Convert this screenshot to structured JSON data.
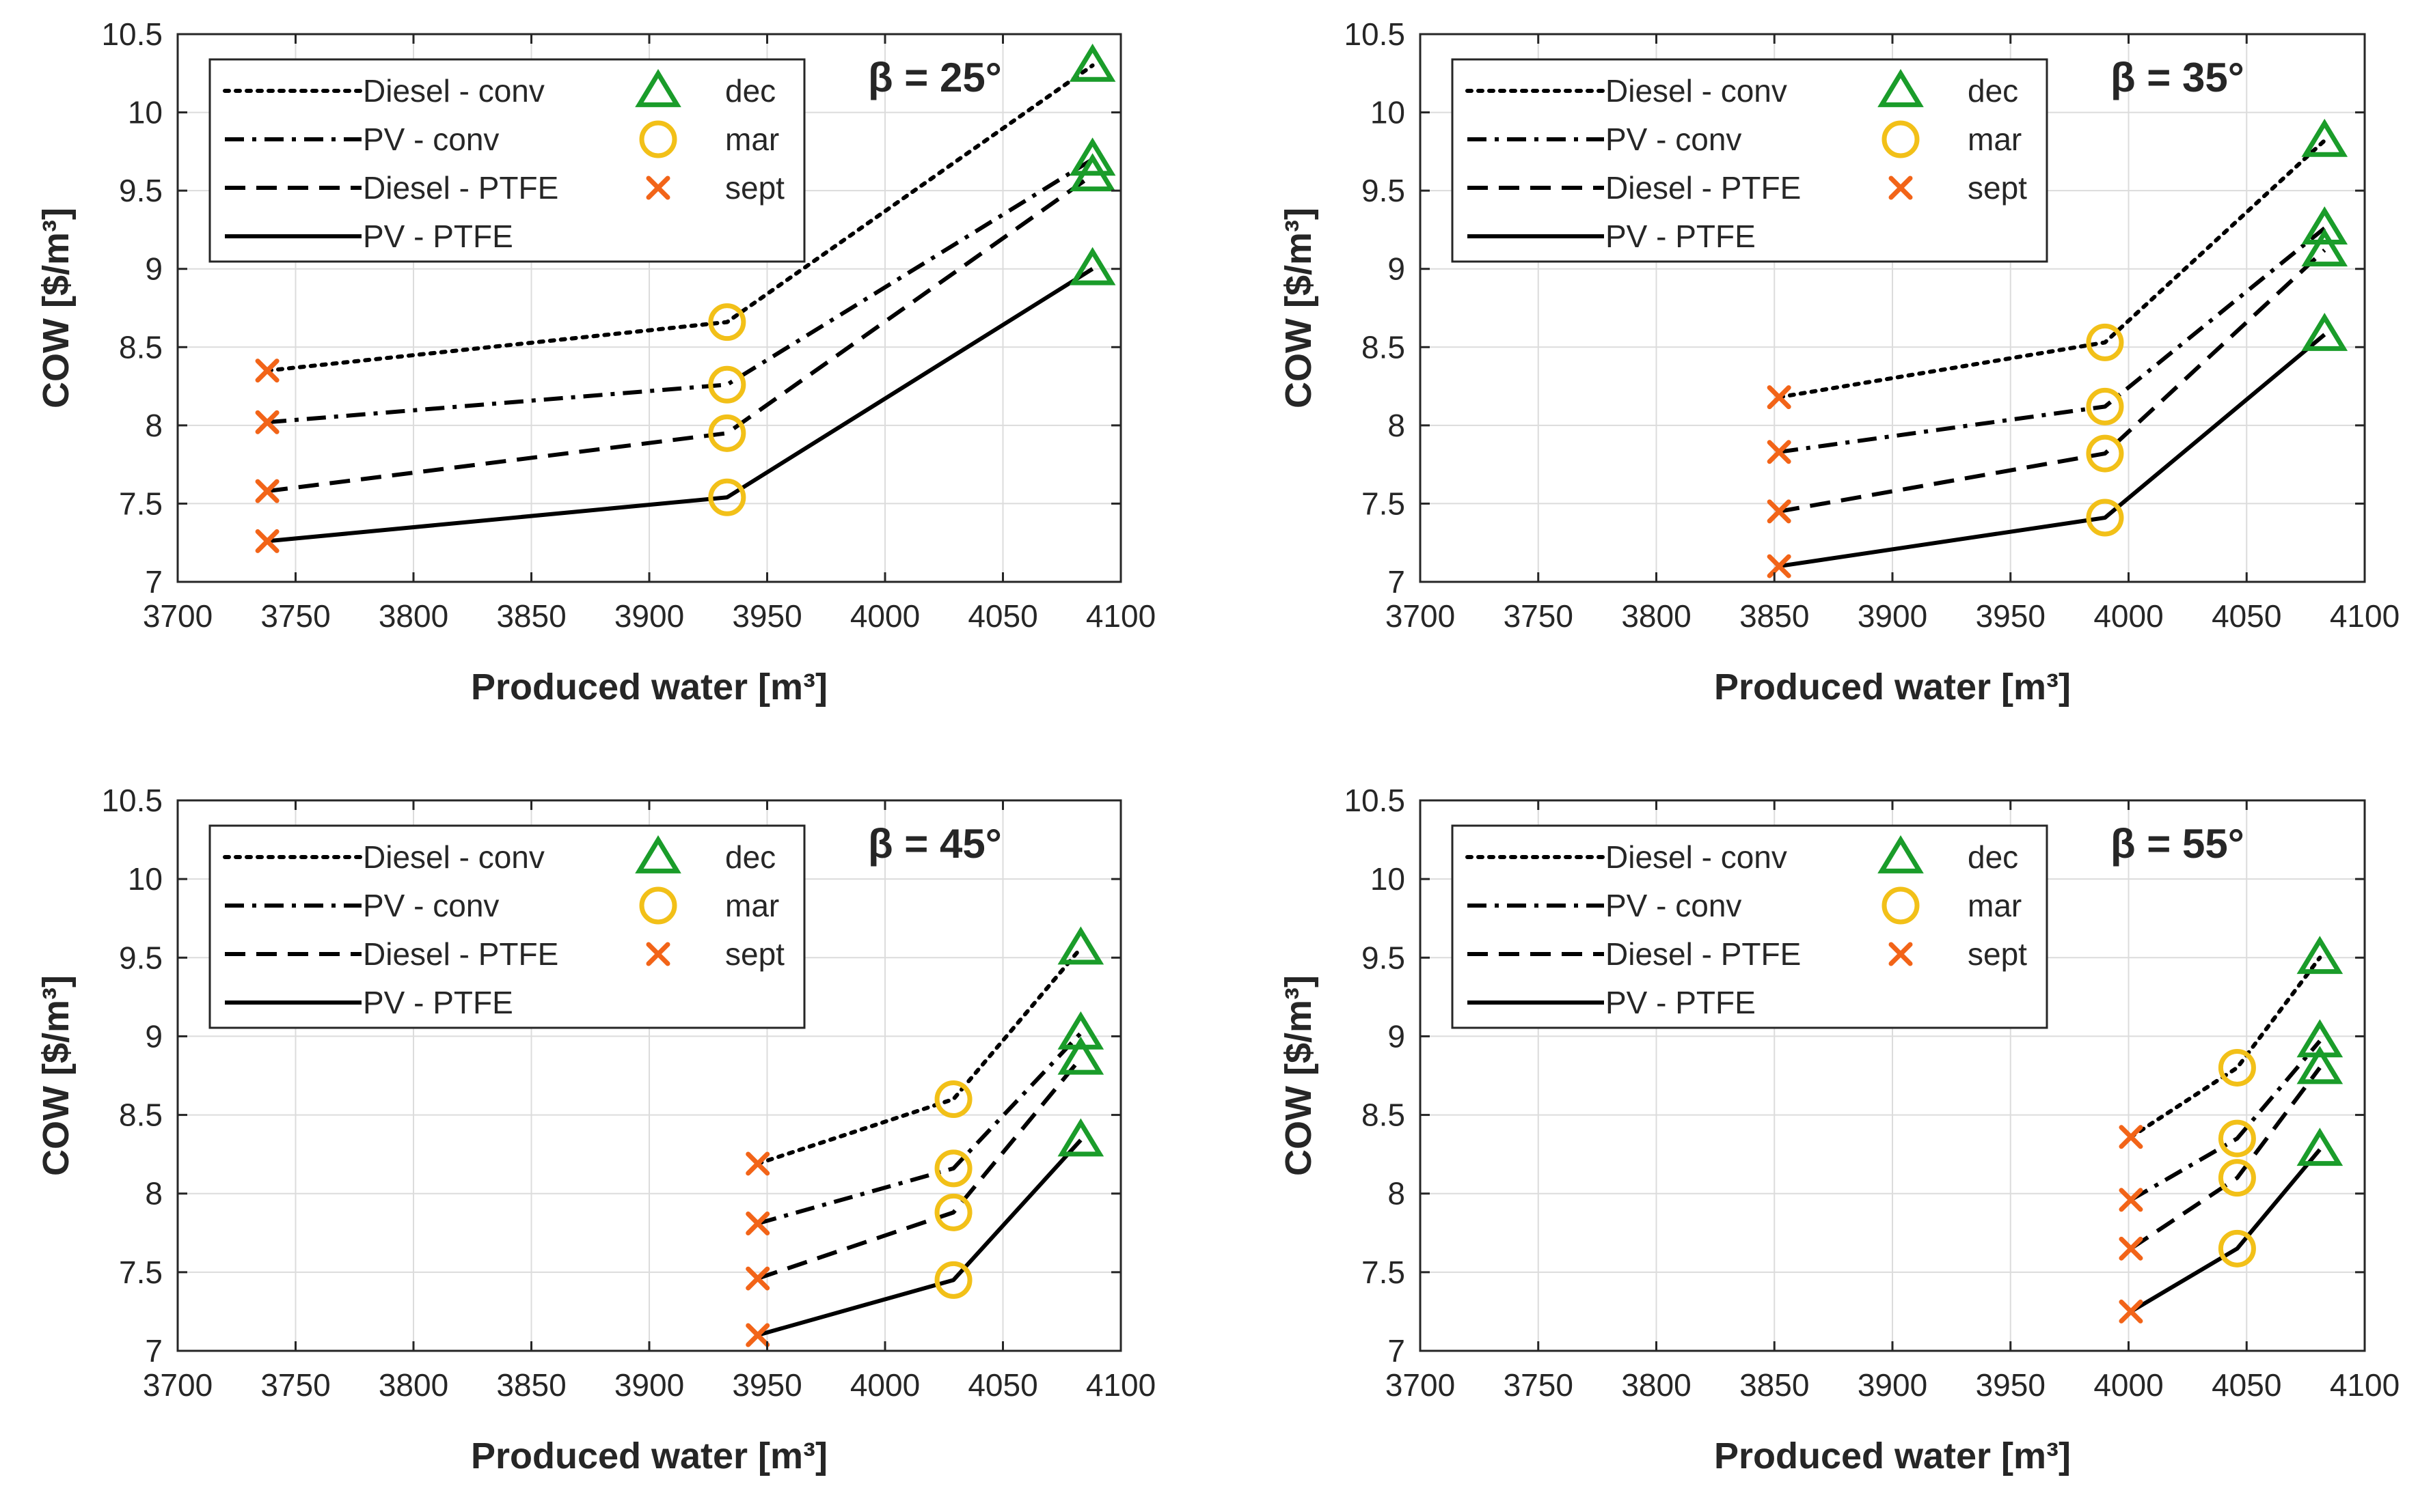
{
  "chart_data": [
    {
      "type": "line",
      "annotation": "β = 25°",
      "xlabel": "Produced water [m³]",
      "ylabel": "COW [$/m³]",
      "xlim": [
        3700,
        4100
      ],
      "ylim": [
        7,
        10.5
      ],
      "xticks": [
        3700,
        3750,
        3800,
        3850,
        3900,
        3950,
        4000,
        4050,
        4100
      ],
      "yticks": [
        7,
        7.5,
        8,
        8.5,
        9,
        9.5,
        10,
        10.5
      ],
      "x": [
        3738,
        3933,
        4088
      ],
      "series": [
        {
          "name": "Diesel - conv",
          "style": "dotted",
          "values": [
            8.35,
            8.66,
            10.3
          ]
        },
        {
          "name": "PV - conv",
          "style": "dashdot",
          "values": [
            8.02,
            8.26,
            9.7
          ]
        },
        {
          "name": "Diesel - PTFE",
          "style": "dashed",
          "values": [
            7.58,
            7.95,
            9.6
          ]
        },
        {
          "name": "PV - PTFE",
          "style": "solid",
          "values": [
            7.26,
            7.54,
            9.0
          ]
        }
      ],
      "markers": [
        {
          "name": "dec",
          "symbol": "triangle",
          "color": "#1a9c2a",
          "point_index": 2
        },
        {
          "name": "mar",
          "symbol": "circle",
          "color": "#f2c018",
          "point_index": 1
        },
        {
          "name": "sept",
          "symbol": "cross",
          "color": "#f26418",
          "point_index": 0
        }
      ]
    },
    {
      "type": "line",
      "annotation": "β = 35°",
      "xlabel": "Produced water [m³]",
      "ylabel": "COW [$/m³]",
      "xlim": [
        3700,
        4100
      ],
      "ylim": [
        7,
        10.5
      ],
      "xticks": [
        3700,
        3750,
        3800,
        3850,
        3900,
        3950,
        4000,
        4050,
        4100
      ],
      "yticks": [
        7,
        7.5,
        8,
        8.5,
        9,
        9.5,
        10,
        10.5
      ],
      "x": [
        3852,
        3990,
        4083
      ],
      "series": [
        {
          "name": "Diesel - conv",
          "style": "dotted",
          "values": [
            8.18,
            8.53,
            9.82
          ]
        },
        {
          "name": "PV - conv",
          "style": "dashdot",
          "values": [
            7.83,
            8.12,
            9.26
          ]
        },
        {
          "name": "Diesel - PTFE",
          "style": "dashed",
          "values": [
            7.45,
            7.82,
            9.12
          ]
        },
        {
          "name": "PV - PTFE",
          "style": "solid",
          "values": [
            7.1,
            7.41,
            8.58
          ]
        }
      ],
      "markers": [
        {
          "name": "dec",
          "symbol": "triangle",
          "color": "#1a9c2a",
          "point_index": 2
        },
        {
          "name": "mar",
          "symbol": "circle",
          "color": "#f2c018",
          "point_index": 1
        },
        {
          "name": "sept",
          "symbol": "cross",
          "color": "#f26418",
          "point_index": 0
        }
      ]
    },
    {
      "type": "line",
      "annotation": "β = 45°",
      "xlabel": "Produced water [m³]",
      "ylabel": "COW [$/m³]",
      "xlim": [
        3700,
        4100
      ],
      "ylim": [
        7,
        10.5
      ],
      "xticks": [
        3700,
        3750,
        3800,
        3850,
        3900,
        3950,
        4000,
        4050,
        4100
      ],
      "yticks": [
        7,
        7.5,
        8,
        8.5,
        9,
        9.5,
        10,
        10.5
      ],
      "x": [
        3946,
        4029,
        4083
      ],
      "series": [
        {
          "name": "Diesel - conv",
          "style": "dotted",
          "values": [
            8.19,
            8.6,
            9.56
          ]
        },
        {
          "name": "PV - conv",
          "style": "dashdot",
          "values": [
            7.81,
            8.16,
            9.02
          ]
        },
        {
          "name": "Diesel - PTFE",
          "style": "dashed",
          "values": [
            7.46,
            7.88,
            8.86
          ]
        },
        {
          "name": "PV - PTFE",
          "style": "solid",
          "values": [
            7.1,
            7.45,
            8.34
          ]
        }
      ],
      "markers": [
        {
          "name": "dec",
          "symbol": "triangle",
          "color": "#1a9c2a",
          "point_index": 2
        },
        {
          "name": "mar",
          "symbol": "circle",
          "color": "#f2c018",
          "point_index": 1
        },
        {
          "name": "sept",
          "symbol": "cross",
          "color": "#f26418",
          "point_index": 0
        }
      ]
    },
    {
      "type": "line",
      "annotation": "β = 55°",
      "xlabel": "Produced water [m³]",
      "ylabel": "COW [$/m³]",
      "xlim": [
        3700,
        4100
      ],
      "ylim": [
        7,
        10.5
      ],
      "xticks": [
        3700,
        3750,
        3800,
        3850,
        3900,
        3950,
        4000,
        4050,
        4100
      ],
      "yticks": [
        7,
        7.5,
        8,
        8.5,
        9,
        9.5,
        10,
        10.5
      ],
      "x": [
        4001,
        4046,
        4081
      ],
      "series": [
        {
          "name": "Diesel - conv",
          "style": "dotted",
          "values": [
            8.36,
            8.8,
            9.5
          ]
        },
        {
          "name": "PV - conv",
          "style": "dashdot",
          "values": [
            7.96,
            8.35,
            8.97
          ]
        },
        {
          "name": "Diesel - PTFE",
          "style": "dashed",
          "values": [
            7.65,
            8.1,
            8.8
          ]
        },
        {
          "name": "PV - PTFE",
          "style": "solid",
          "values": [
            7.25,
            7.65,
            8.28
          ]
        }
      ],
      "markers": [
        {
          "name": "dec",
          "symbol": "triangle",
          "color": "#1a9c2a",
          "point_index": 2
        },
        {
          "name": "mar",
          "symbol": "circle",
          "color": "#f2c018",
          "point_index": 1
        },
        {
          "name": "sept",
          "symbol": "cross",
          "color": "#f26418",
          "point_index": 0
        }
      ]
    }
  ]
}
